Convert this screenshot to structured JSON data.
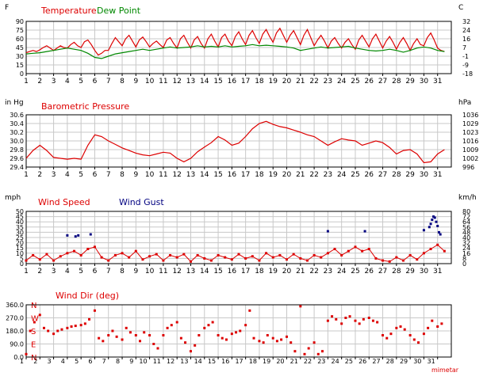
{
  "footer": {
    "brand": "mimetar"
  },
  "colors": {
    "red": "#dd0000",
    "green": "#008800",
    "navy": "#000080",
    "grid": "#c8c8c8",
    "frame": "#000000"
  },
  "chart_data": [
    {
      "type": "line",
      "titles": [
        {
          "text": "Temperature",
          "color": "#dd0000"
        },
        {
          "text": "Dew Point",
          "color": "#008800"
        }
      ],
      "left_unit": "F",
      "right_unit": "C",
      "x_ticks": [
        "1",
        "2",
        "3",
        "4",
        "5",
        "6",
        "7",
        "8",
        "9",
        "10",
        "11",
        "12",
        "13",
        "14",
        "15",
        "16",
        "17",
        "18",
        "19",
        "20",
        "21",
        "22",
        "23",
        "24",
        "25",
        "26",
        "27",
        "28",
        "29",
        "30",
        "31"
      ],
      "xlim": [
        1,
        32
      ],
      "ylim": [
        0,
        90
      ],
      "y_ticks_left": [
        "90",
        "75",
        "60",
        "45",
        "30",
        "15",
        "0"
      ],
      "y_ticks_right": [
        "32",
        "24",
        "16",
        "7",
        "-1",
        "-9",
        "-18"
      ],
      "series": [
        {
          "name": "Temperature",
          "color": "#dd0000",
          "x": [
            1,
            1.25,
            1.5,
            1.75,
            2,
            2.25,
            2.5,
            2.75,
            3,
            3.25,
            3.5,
            3.75,
            4,
            4.25,
            4.5,
            4.75,
            5,
            5.25,
            5.5,
            5.75,
            6,
            6.25,
            6.5,
            6.75,
            7,
            7.25,
            7.5,
            7.75,
            8,
            8.25,
            8.5,
            8.75,
            9,
            9.25,
            9.5,
            9.75,
            10,
            10.25,
            10.5,
            10.75,
            11,
            11.25,
            11.5,
            11.75,
            12,
            12.25,
            12.5,
            12.75,
            13,
            13.25,
            13.5,
            13.75,
            14,
            14.25,
            14.5,
            14.75,
            15,
            15.25,
            15.5,
            15.75,
            16,
            16.25,
            16.5,
            16.75,
            17,
            17.25,
            17.5,
            17.75,
            18,
            18.25,
            18.5,
            18.75,
            19,
            19.25,
            19.5,
            19.75,
            20,
            20.25,
            20.5,
            20.75,
            21,
            21.25,
            21.5,
            21.75,
            22,
            22.25,
            22.5,
            22.75,
            23,
            23.25,
            23.5,
            23.75,
            24,
            24.25,
            24.5,
            24.75,
            25,
            25.25,
            25.5,
            25.75,
            26,
            26.25,
            26.5,
            26.75,
            27,
            27.25,
            27.5,
            27.75,
            28,
            28.25,
            28.5,
            28.75,
            29,
            29.25,
            29.5,
            29.75,
            30,
            30.25,
            30.5,
            30.75,
            31,
            31.25,
            31.5
          ],
          "values": [
            36,
            38,
            40,
            38,
            41,
            45,
            48,
            44,
            40,
            44,
            48,
            45,
            44,
            50,
            54,
            48,
            45,
            55,
            58,
            50,
            40,
            32,
            35,
            40,
            40,
            52,
            62,
            55,
            48,
            60,
            66,
            56,
            46,
            58,
            63,
            55,
            46,
            52,
            56,
            50,
            45,
            58,
            62,
            52,
            44,
            60,
            66,
            54,
            44,
            58,
            64,
            52,
            44,
            60,
            68,
            56,
            46,
            62,
            68,
            56,
            48,
            64,
            72,
            60,
            50,
            66,
            74,
            62,
            52,
            68,
            76,
            64,
            54,
            70,
            78,
            66,
            54,
            66,
            74,
            62,
            50,
            66,
            76,
            62,
            48,
            58,
            66,
            56,
            44,
            56,
            62,
            52,
            44,
            54,
            60,
            50,
            42,
            58,
            66,
            56,
            46,
            60,
            68,
            56,
            44,
            56,
            64,
            54,
            42,
            54,
            62,
            52,
            40,
            52,
            60,
            50,
            48,
            62,
            70,
            58,
            44,
            40,
            38
          ]
        },
        {
          "name": "Dew Point",
          "color": "#008800",
          "x": [
            1,
            1.5,
            2,
            2.5,
            3,
            3.5,
            4,
            4.5,
            5,
            5.5,
            6,
            6.5,
            7,
            7.5,
            8,
            8.5,
            9,
            9.5,
            10,
            10.5,
            11,
            11.5,
            12,
            12.5,
            13,
            13.5,
            14,
            14.5,
            15,
            15.5,
            16,
            16.5,
            17,
            17.5,
            18,
            18.5,
            19,
            19.5,
            20,
            20.5,
            21,
            21.5,
            22,
            22.5,
            23,
            23.5,
            24,
            24.5,
            25,
            25.5,
            26,
            26.5,
            27,
            27.5,
            28,
            28.5,
            29,
            29.5,
            30,
            30.5,
            31,
            31.5
          ],
          "values": [
            34,
            35,
            36,
            38,
            40,
            42,
            44,
            42,
            40,
            35,
            28,
            26,
            30,
            34,
            36,
            38,
            40,
            42,
            40,
            42,
            44,
            46,
            44,
            45,
            46,
            48,
            46,
            47,
            46,
            48,
            46,
            47,
            48,
            50,
            48,
            49,
            48,
            47,
            46,
            44,
            40,
            42,
            44,
            46,
            44,
            45,
            46,
            47,
            44,
            42,
            40,
            39,
            40,
            42,
            40,
            37,
            40,
            44,
            46,
            44,
            40,
            38
          ]
        }
      ]
    },
    {
      "type": "line",
      "titles": [
        {
          "text": "Barometric Pressure",
          "color": "#dd0000"
        }
      ],
      "left_unit": "in Hg",
      "right_unit": "hPa",
      "x_ticks": [
        "1",
        "2",
        "3",
        "4",
        "5",
        "6",
        "7",
        "8",
        "9",
        "10",
        "11",
        "12",
        "13",
        "14",
        "15",
        "16",
        "17",
        "18",
        "19",
        "20",
        "21",
        "22",
        "23",
        "24",
        "25",
        "26",
        "27",
        "28",
        "29",
        "30",
        "31"
      ],
      "xlim": [
        1,
        32
      ],
      "ylim": [
        29.4,
        30.6
      ],
      "y_ticks_left": [
        "30.6",
        "30.4",
        "30.2",
        "30.0",
        "29.8",
        "29.6",
        "29.4"
      ],
      "y_ticks_right": [
        "1036",
        "1029",
        "1023",
        "1016",
        "1009",
        "1002",
        "996"
      ],
      "series": [
        {
          "name": "Barometric Pressure",
          "color": "#dd0000",
          "x": [
            1,
            1.5,
            2,
            2.5,
            3,
            3.5,
            4,
            4.5,
            5,
            5.5,
            6,
            6.5,
            7,
            7.5,
            8,
            8.5,
            9,
            9.5,
            10,
            10.5,
            11,
            11.5,
            12,
            12.5,
            13,
            13.5,
            14,
            14.5,
            15,
            15.5,
            16,
            16.5,
            17,
            17.5,
            18,
            18.5,
            19,
            19.5,
            20,
            20.5,
            21,
            21.5,
            22,
            22.5,
            23,
            23.5,
            24,
            24.5,
            25,
            25.5,
            26,
            26.5,
            27,
            27.5,
            28,
            28.5,
            29,
            29.5,
            30,
            30.5,
            31,
            31.5
          ],
          "values": [
            29.6,
            29.78,
            29.9,
            29.78,
            29.62,
            29.6,
            29.58,
            29.6,
            29.58,
            29.9,
            30.14,
            30.1,
            30.0,
            29.92,
            29.84,
            29.78,
            29.72,
            29.68,
            29.66,
            29.7,
            29.74,
            29.72,
            29.6,
            29.52,
            29.6,
            29.75,
            29.86,
            29.96,
            30.1,
            30.02,
            29.9,
            29.95,
            30.1,
            30.28,
            30.4,
            30.45,
            30.38,
            30.33,
            30.3,
            30.25,
            30.2,
            30.14,
            30.1,
            30.0,
            29.9,
            29.98,
            30.05,
            30.02,
            30.0,
            29.9,
            29.95,
            30.0,
            29.96,
            29.85,
            29.7,
            29.78,
            29.8,
            29.7,
            29.5,
            29.52,
            29.7,
            29.8
          ]
        }
      ]
    },
    {
      "type": "scatter",
      "titles": [
        {
          "text": "Wind Speed",
          "color": "#dd0000"
        },
        {
          "text": "Wind Gust",
          "color": "#000080"
        }
      ],
      "left_unit": "mph",
      "right_unit": "km/h",
      "x_ticks": [
        "1",
        "2",
        "3",
        "4",
        "5",
        "6",
        "7",
        "8",
        "9",
        "10",
        "11",
        "12",
        "13",
        "14",
        "15",
        "16",
        "17",
        "18",
        "19",
        "20",
        "21",
        "22",
        "23",
        "24",
        "25",
        "26",
        "27",
        "28",
        "29",
        "30",
        "31"
      ],
      "xlim": [
        1,
        32
      ],
      "ylim": [
        0,
        50
      ],
      "y_ticks_left": [
        "50",
        "45",
        "40",
        "35",
        "30",
        "25",
        "20",
        "15",
        "10",
        "5",
        "0"
      ],
      "y_ticks_right": [
        "80",
        "72",
        "64",
        "56",
        "48",
        "40",
        "32",
        "24",
        "16",
        "8",
        "0"
      ],
      "series": [
        {
          "name": "Wind Speed",
          "color": "#dd0000",
          "x": [
            1,
            1.5,
            2,
            2.5,
            3,
            3.5,
            4,
            4.5,
            5,
            5.5,
            6,
            6.5,
            7,
            7.5,
            8,
            8.5,
            9,
            9.5,
            10,
            10.5,
            11,
            11.5,
            12,
            12.5,
            13,
            13.5,
            14,
            14.5,
            15,
            15.5,
            16,
            16.5,
            17,
            17.5,
            18,
            18.5,
            19,
            19.5,
            20,
            20.5,
            21,
            21.5,
            22,
            22.5,
            23,
            23.5,
            24,
            24.5,
            25,
            25.5,
            26,
            26.5,
            27,
            27.5,
            28,
            28.5,
            29,
            29.5,
            30,
            30.5,
            31,
            31.5
          ],
          "values": [
            3,
            8,
            4,
            9,
            3,
            7,
            10,
            12,
            8,
            14,
            16,
            6,
            3,
            8,
            10,
            6,
            12,
            4,
            7,
            9,
            3,
            8,
            6,
            9,
            2,
            8,
            5,
            3,
            8,
            6,
            4,
            9,
            5,
            7,
            3,
            10,
            6,
            8,
            4,
            9,
            5,
            3,
            8,
            6,
            10,
            14,
            8,
            12,
            16,
            12,
            14,
            5,
            3,
            2,
            6,
            3,
            8,
            4,
            10,
            14,
            18,
            12
          ]
        },
        {
          "name": "Wind Gust",
          "color": "#000080",
          "x": [
            4,
            4.6,
            4.8,
            5.7,
            23,
            25.7,
            30,
            30.4,
            30.5,
            30.6,
            30.7,
            30.8,
            30.9,
            31,
            31.1,
            31.2
          ],
          "values": [
            27,
            26,
            27,
            28,
            31,
            31,
            32,
            35,
            38,
            42,
            45,
            44,
            40,
            36,
            30,
            28
          ]
        }
      ]
    },
    {
      "type": "scatter",
      "titles": [
        {
          "text": "Wind Dir (deg)",
          "color": "#dd0000"
        }
      ],
      "left_unit": "",
      "right_unit": "",
      "x_ticks": [
        "1",
        "2",
        "3",
        "4",
        "5",
        "6",
        "7",
        "8",
        "9",
        "10",
        "11",
        "12",
        "13",
        "14",
        "15",
        "16",
        "17",
        "18",
        "19",
        "20",
        "21",
        "22",
        "23",
        "24",
        "25",
        "26",
        "27",
        "28",
        "29",
        "30",
        "31"
      ],
      "xlim": [
        1,
        32
      ],
      "ylim": [
        0,
        360
      ],
      "y_ticks_left": [
        "360.0",
        "270.0",
        "180.0",
        "90.0",
        "0.0"
      ],
      "compass": [
        "N",
        "W",
        "S",
        "E",
        "N"
      ],
      "series": [
        {
          "name": "Wind Dir (deg)",
          "color": "#dd0000",
          "x": [
            1,
            1.3,
            1.6,
            2,
            2.3,
            2.6,
            3,
            3.3,
            3.6,
            4,
            4.3,
            4.6,
            5,
            5.3,
            5.6,
            6,
            6.3,
            6.6,
            7,
            7.3,
            7.6,
            8,
            8.3,
            8.6,
            9,
            9.3,
            9.6,
            10,
            10.3,
            10.6,
            11,
            11.3,
            11.6,
            12,
            12.3,
            12.6,
            13,
            13.3,
            13.6,
            14,
            14.3,
            14.6,
            15,
            15.3,
            15.6,
            16,
            16.3,
            16.6,
            17,
            17.3,
            17.6,
            18,
            18.3,
            18.6,
            19,
            19.3,
            19.6,
            20,
            20.3,
            20.6,
            21,
            21.3,
            21.6,
            22,
            22.3,
            22.6,
            23,
            23.3,
            23.6,
            24,
            24.3,
            24.6,
            25,
            25.3,
            25.6,
            26,
            26.3,
            26.6,
            27,
            27.3,
            27.6,
            28,
            28.3,
            28.6,
            29,
            29.3,
            29.6,
            30,
            30.3,
            30.6,
            31,
            31.3
          ],
          "values": [
            20,
            180,
            240,
            290,
            200,
            180,
            160,
            180,
            190,
            200,
            210,
            215,
            220,
            230,
            260,
            320,
            130,
            110,
            150,
            180,
            140,
            120,
            200,
            170,
            150,
            110,
            170,
            150,
            90,
            60,
            150,
            200,
            220,
            240,
            130,
            100,
            40,
            80,
            150,
            200,
            220,
            240,
            150,
            130,
            120,
            160,
            170,
            180,
            220,
            320,
            130,
            110,
            100,
            150,
            130,
            110,
            120,
            140,
            100,
            40,
            350,
            20,
            60,
            100,
            20,
            40,
            250,
            280,
            260,
            230,
            270,
            280,
            250,
            230,
            260,
            270,
            250,
            240,
            150,
            130,
            160,
            200,
            210,
            190,
            150,
            120,
            100,
            160,
            200,
            250,
            210,
            230
          ]
        }
      ]
    }
  ]
}
